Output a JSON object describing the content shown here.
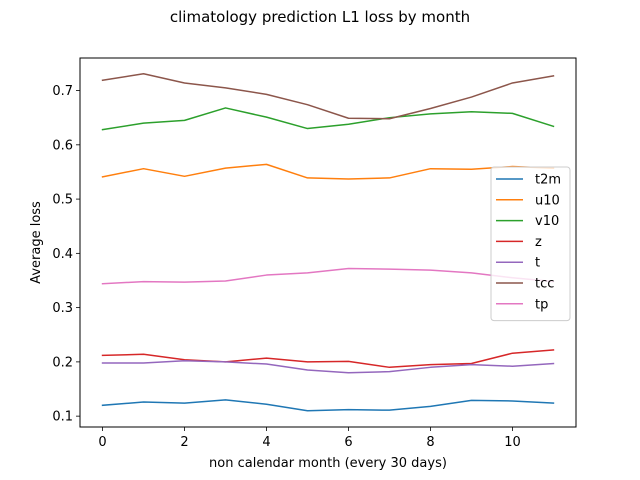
{
  "chart_data": {
    "type": "line",
    "title": "climatology prediction L1 loss by month",
    "xlabel": "non calendar month (every 30 days)",
    "ylabel": "Average loss",
    "x": [
      0,
      1,
      2,
      3,
      4,
      5,
      6,
      7,
      8,
      9,
      10,
      11
    ],
    "xlim": [
      -0.55,
      11.55
    ],
    "ylim": [
      0.08,
      0.76
    ],
    "xticks": [
      0,
      2,
      4,
      6,
      8,
      10
    ],
    "yticks": [
      0.1,
      0.2,
      0.3,
      0.4,
      0.5,
      0.6,
      0.7
    ],
    "xtick_labels": [
      "0",
      "2",
      "4",
      "6",
      "8",
      "10"
    ],
    "ytick_labels": [
      "0.1",
      "0.2",
      "0.3",
      "0.4",
      "0.5",
      "0.6",
      "0.7"
    ],
    "grid": false,
    "legend_position": "center-right",
    "series": [
      {
        "name": "t2m",
        "color": "#1f77b4",
        "values": [
          0.12,
          0.126,
          0.124,
          0.13,
          0.122,
          0.11,
          0.112,
          0.111,
          0.118,
          0.129,
          0.128,
          0.124
        ]
      },
      {
        "name": "u10",
        "color": "#ff7f0e",
        "values": [
          0.541,
          0.556,
          0.542,
          0.557,
          0.564,
          0.539,
          0.537,
          0.539,
          0.556,
          0.555,
          0.56,
          0.557
        ]
      },
      {
        "name": "v10",
        "color": "#2ca02c",
        "values": [
          0.628,
          0.64,
          0.645,
          0.668,
          0.651,
          0.63,
          0.638,
          0.65,
          0.657,
          0.661,
          0.658,
          0.634
        ]
      },
      {
        "name": "z",
        "color": "#d62728",
        "values": [
          0.212,
          0.214,
          0.204,
          0.2,
          0.207,
          0.2,
          0.201,
          0.19,
          0.195,
          0.197,
          0.216,
          0.222
        ]
      },
      {
        "name": "t",
        "color": "#9467bd",
        "values": [
          0.198,
          0.198,
          0.202,
          0.2,
          0.196,
          0.185,
          0.18,
          0.182,
          0.19,
          0.195,
          0.192,
          0.197
        ]
      },
      {
        "name": "tcc",
        "color": "#8c564b",
        "values": [
          0.719,
          0.731,
          0.714,
          0.705,
          0.693,
          0.674,
          0.649,
          0.648,
          0.667,
          0.688,
          0.714,
          0.727
        ]
      },
      {
        "name": "tp",
        "color": "#e377c2",
        "values": [
          0.344,
          0.348,
          0.347,
          0.349,
          0.36,
          0.364,
          0.372,
          0.371,
          0.369,
          0.364,
          0.355,
          0.348
        ]
      }
    ]
  }
}
